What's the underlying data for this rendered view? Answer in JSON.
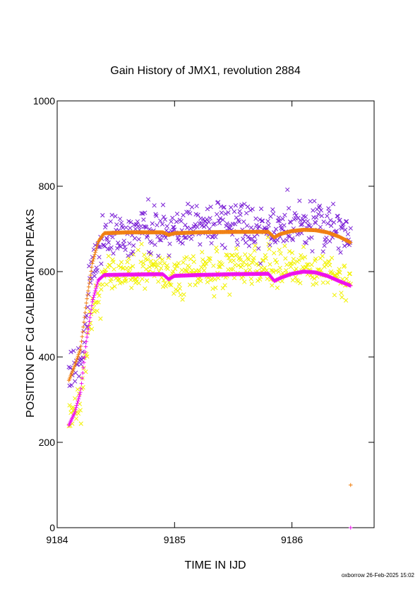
{
  "chart_data": {
    "type": "scatter",
    "title": "Gain History of JMX1, revolution 2884",
    "xlabel": "TIME IN IJD",
    "ylabel": "POSITION OF Cd CALIBRATION PEAKS",
    "xlim": [
      9184,
      9186.7
    ],
    "ylim": [
      0,
      1000
    ],
    "xticks": [
      "9184",
      "9185",
      "9186"
    ],
    "yticks": [
      "0",
      "200",
      "400",
      "600",
      "800",
      "1000"
    ],
    "grid": false,
    "legend": "none",
    "footer": "oxborrow 26-Feb-2025 15:02",
    "series": [
      {
        "marker": "x",
        "color": "#7a1fd6",
        "scatter_sd": 28,
        "x": [
          9184.1,
          9184.2,
          9184.3,
          9184.4,
          9184.5,
          9184.7,
          9184.9,
          9185.0,
          9185.2,
          9185.4,
          9185.5,
          9185.6,
          9185.8,
          9185.9,
          9186.0,
          9186.2,
          9186.4,
          9186.5
        ],
        "y": [
          360,
          390,
          600,
          690,
          695,
          700,
          700,
          695,
          705,
          710,
          720,
          705,
          700,
          705,
          715,
          705,
          690,
          680
        ]
      },
      {
        "marker": "x",
        "color": "#f2f200",
        "scatter_sd": 24,
        "x": [
          9184.1,
          9184.2,
          9184.3,
          9184.4,
          9184.5,
          9184.7,
          9184.9,
          9185.0,
          9185.2,
          9185.4,
          9185.6,
          9185.8,
          9185.9,
          9186.0,
          9186.2,
          9186.4,
          9186.5
        ],
        "y": [
          250,
          300,
          520,
          590,
          600,
          600,
          605,
          595,
          600,
          605,
          610,
          610,
          605,
          615,
          600,
          590,
          580
        ]
      },
      {
        "marker": "+",
        "color": "#f07f10",
        "x": [
          9184.1,
          9184.15,
          9184.2,
          9184.25,
          9184.3,
          9184.35,
          9184.4,
          9184.6,
          9184.9,
          9184.95,
          9185.0,
          9185.2,
          9185.5,
          9185.8,
          9185.85,
          9185.9,
          9186.0,
          9186.1,
          9186.2,
          9186.3,
          9186.4,
          9186.5
        ],
        "y": [
          345,
          380,
          420,
          530,
          620,
          670,
          690,
          692,
          692,
          686,
          690,
          692,
          693,
          693,
          680,
          688,
          695,
          698,
          697,
          692,
          682,
          668
        ],
        "outliers": [
          [
            9186.5,
            100
          ]
        ]
      },
      {
        "marker": "+",
        "color": "#ee10ee",
        "x": [
          9184.1,
          9184.15,
          9184.2,
          9184.25,
          9184.3,
          9184.35,
          9184.4,
          9184.6,
          9184.9,
          9184.95,
          9185.0,
          9185.2,
          9185.5,
          9185.8,
          9185.85,
          9185.9,
          9186.0,
          9186.1,
          9186.2,
          9186.3,
          9186.4,
          9186.5
        ],
        "y": [
          240,
          270,
          320,
          440,
          530,
          580,
          592,
          593,
          594,
          582,
          590,
          592,
          594,
          595,
          578,
          585,
          595,
          600,
          598,
          590,
          578,
          567
        ],
        "outliers": [
          [
            9186.5,
            0
          ]
        ]
      }
    ]
  }
}
